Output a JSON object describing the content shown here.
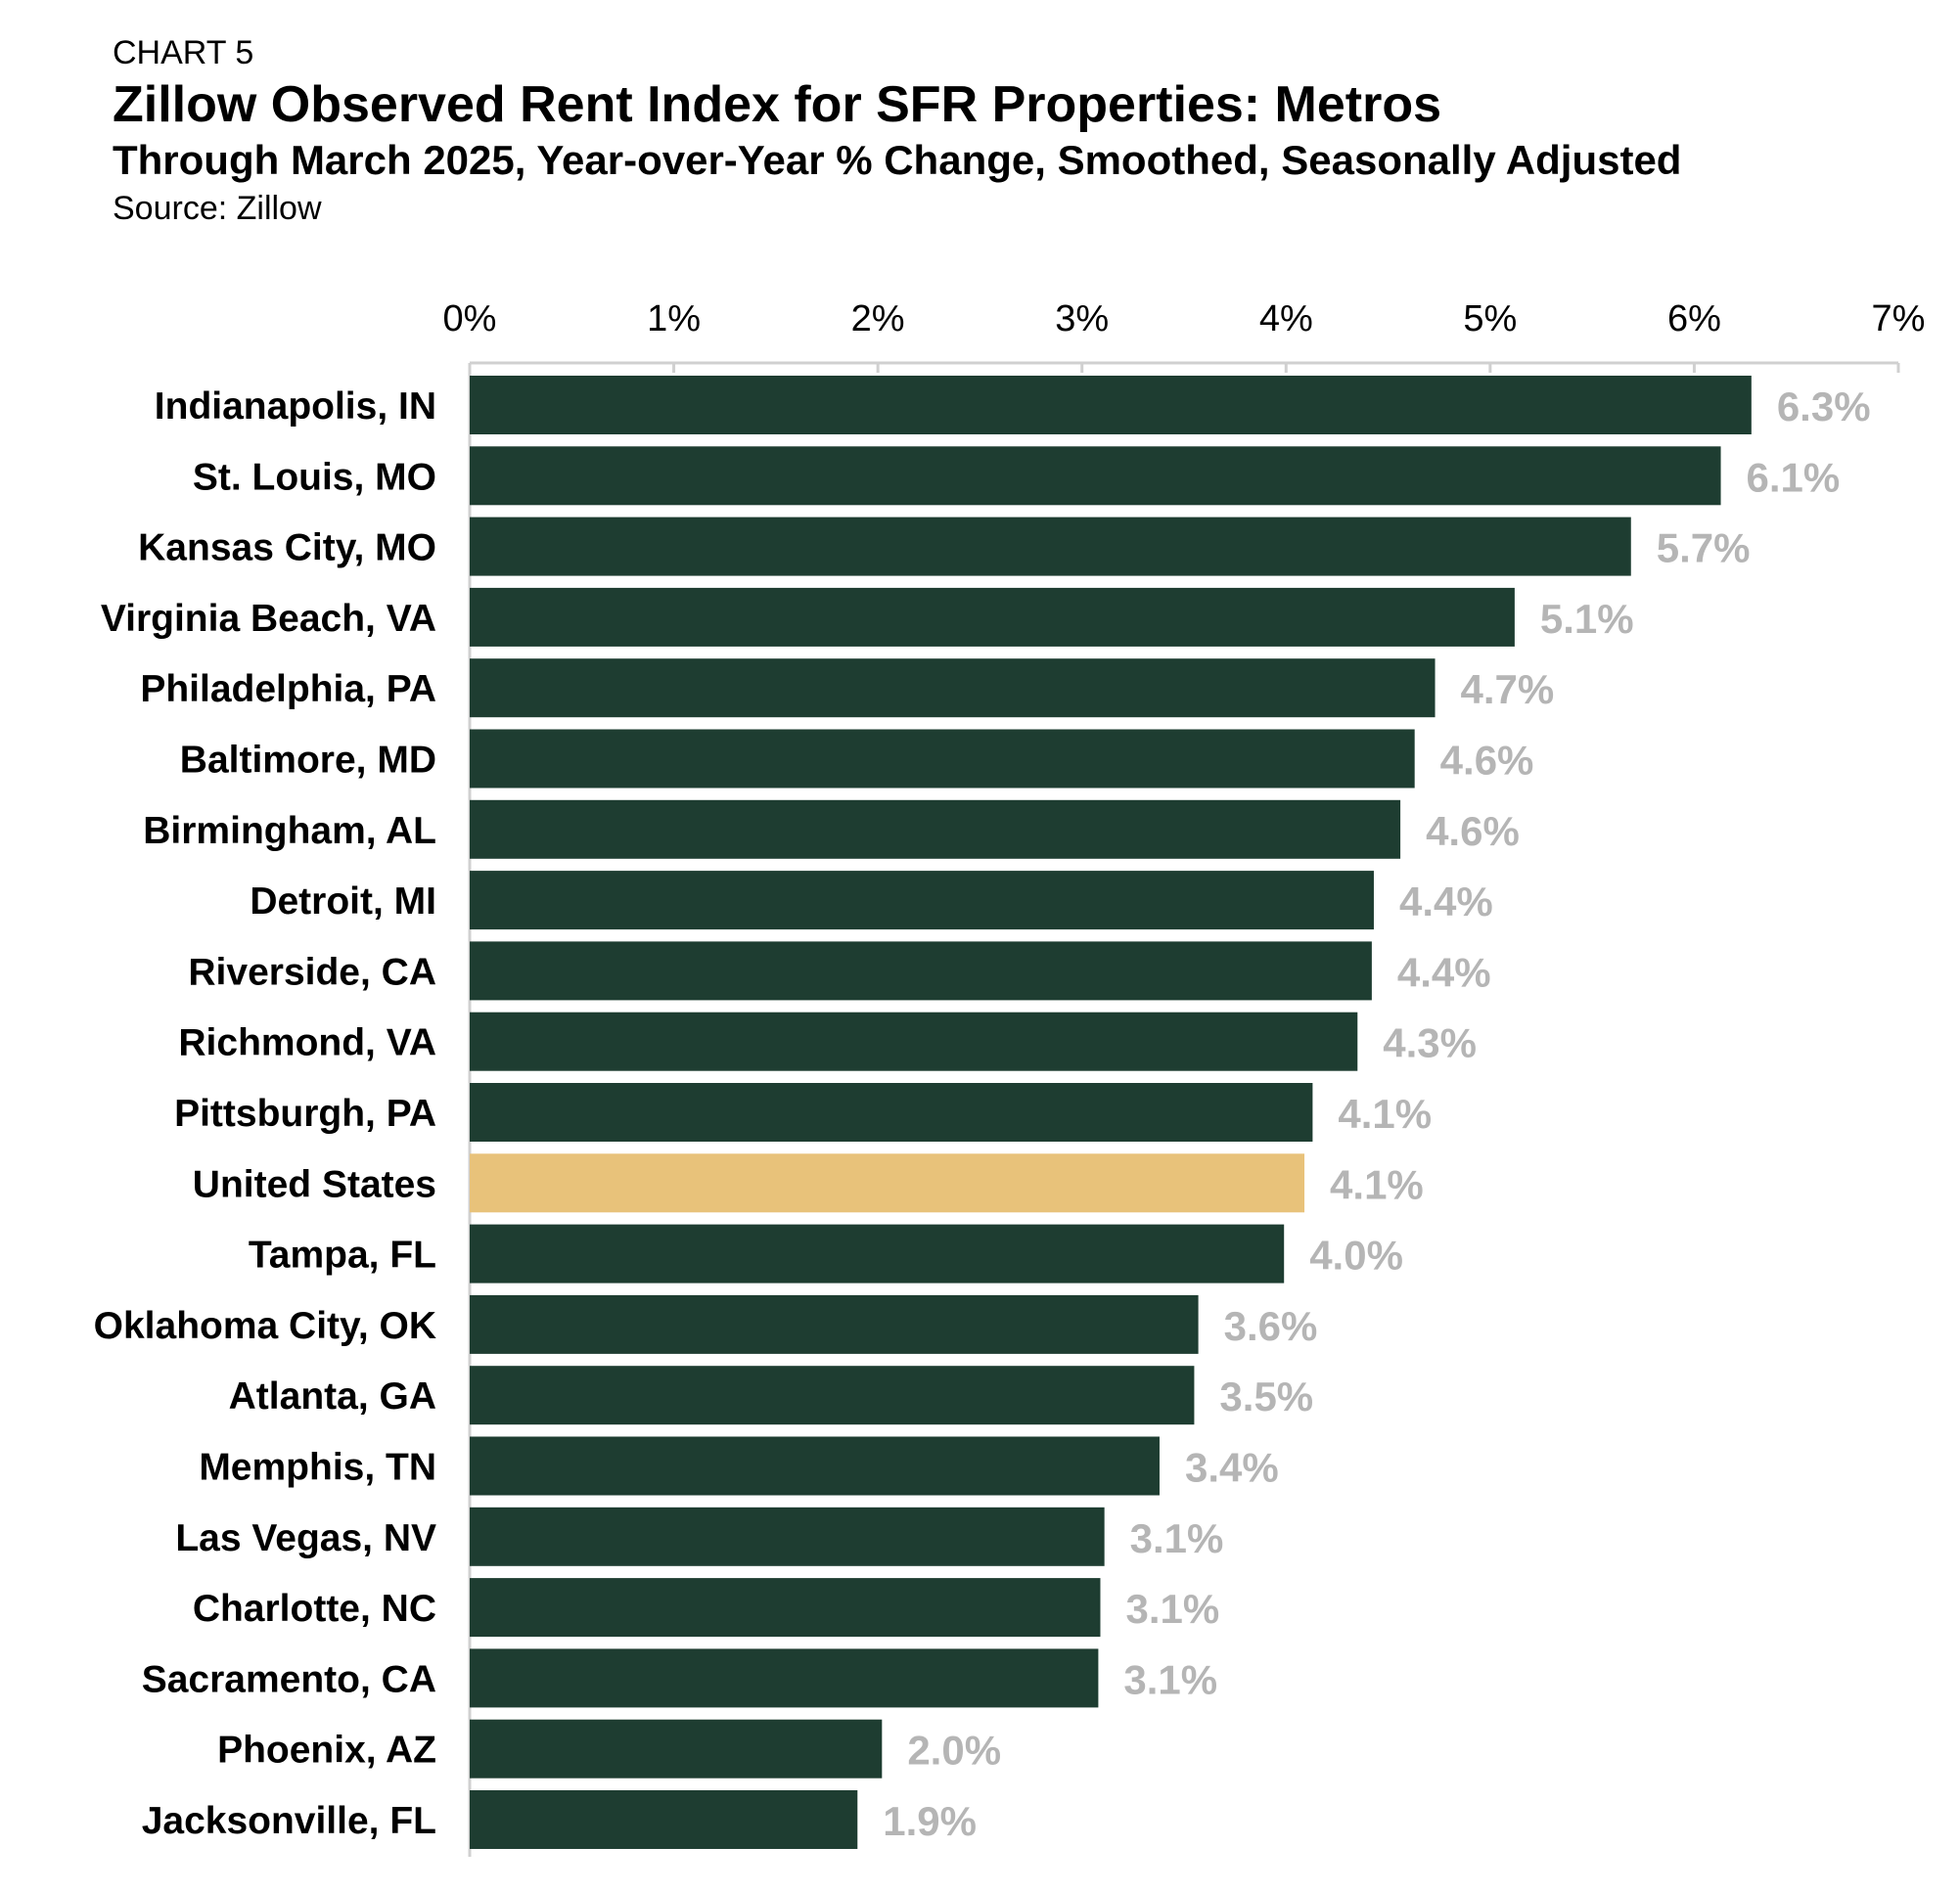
{
  "header": {
    "chart_number": "CHART 5",
    "title": "Zillow Observed Rent Index for SFR Properties: Metros",
    "subtitle": "Through March 2025, Year-over-Year % Change, Smoothed, Seasonally Adjusted",
    "source": "Source: Zillow"
  },
  "colors": {
    "bar": "#1e3d31",
    "highlight": "#e8c27a",
    "data_label": "#b5b5b5",
    "axis": "#d0d0d0"
  },
  "chart_data": {
    "type": "bar",
    "orientation": "horizontal",
    "title": "Zillow Observed Rent Index for SFR Properties: Metros",
    "subtitle": "Through March 2025, Year-over-Year % Change, Smoothed, Seasonally Adjusted",
    "xlabel": "",
    "ylabel": "",
    "x_axis_position": "top",
    "xlim": [
      0,
      7
    ],
    "xticks": [
      0,
      1,
      2,
      3,
      4,
      5,
      6,
      7
    ],
    "xtick_labels": [
      "0%",
      "1%",
      "2%",
      "3%",
      "4%",
      "5%",
      "6%",
      "7%"
    ],
    "grid": false,
    "highlight_category": "United States",
    "categories": [
      "Indianapolis, IN",
      "St. Louis, MO",
      "Kansas City, MO",
      "Virginia Beach, VA",
      "Philadelphia, PA",
      "Baltimore, MD",
      "Birmingham, AL",
      "Detroit, MI",
      "Riverside, CA",
      "Richmond, VA",
      "Pittsburgh, PA",
      "United States",
      "Tampa, FL",
      "Oklahoma City, OK",
      "Atlanta, GA",
      "Memphis, TN",
      "Las Vegas, NV",
      "Charlotte, NC",
      "Sacramento, CA",
      "Phoenix, AZ",
      "Jacksonville, FL"
    ],
    "values": [
      6.28,
      6.13,
      5.69,
      5.12,
      4.73,
      4.63,
      4.56,
      4.43,
      4.42,
      4.35,
      4.13,
      4.09,
      3.99,
      3.57,
      3.55,
      3.38,
      3.11,
      3.09,
      3.08,
      2.02,
      1.9
    ],
    "data_labels": [
      "6.3%",
      "6.1%",
      "5.7%",
      "5.1%",
      "4.7%",
      "4.6%",
      "4.6%",
      "4.4%",
      "4.4%",
      "4.3%",
      "4.1%",
      "4.1%",
      "4.0%",
      "3.6%",
      "3.5%",
      "3.4%",
      "3.1%",
      "3.1%",
      "3.1%",
      "2.0%",
      "1.9%"
    ]
  }
}
